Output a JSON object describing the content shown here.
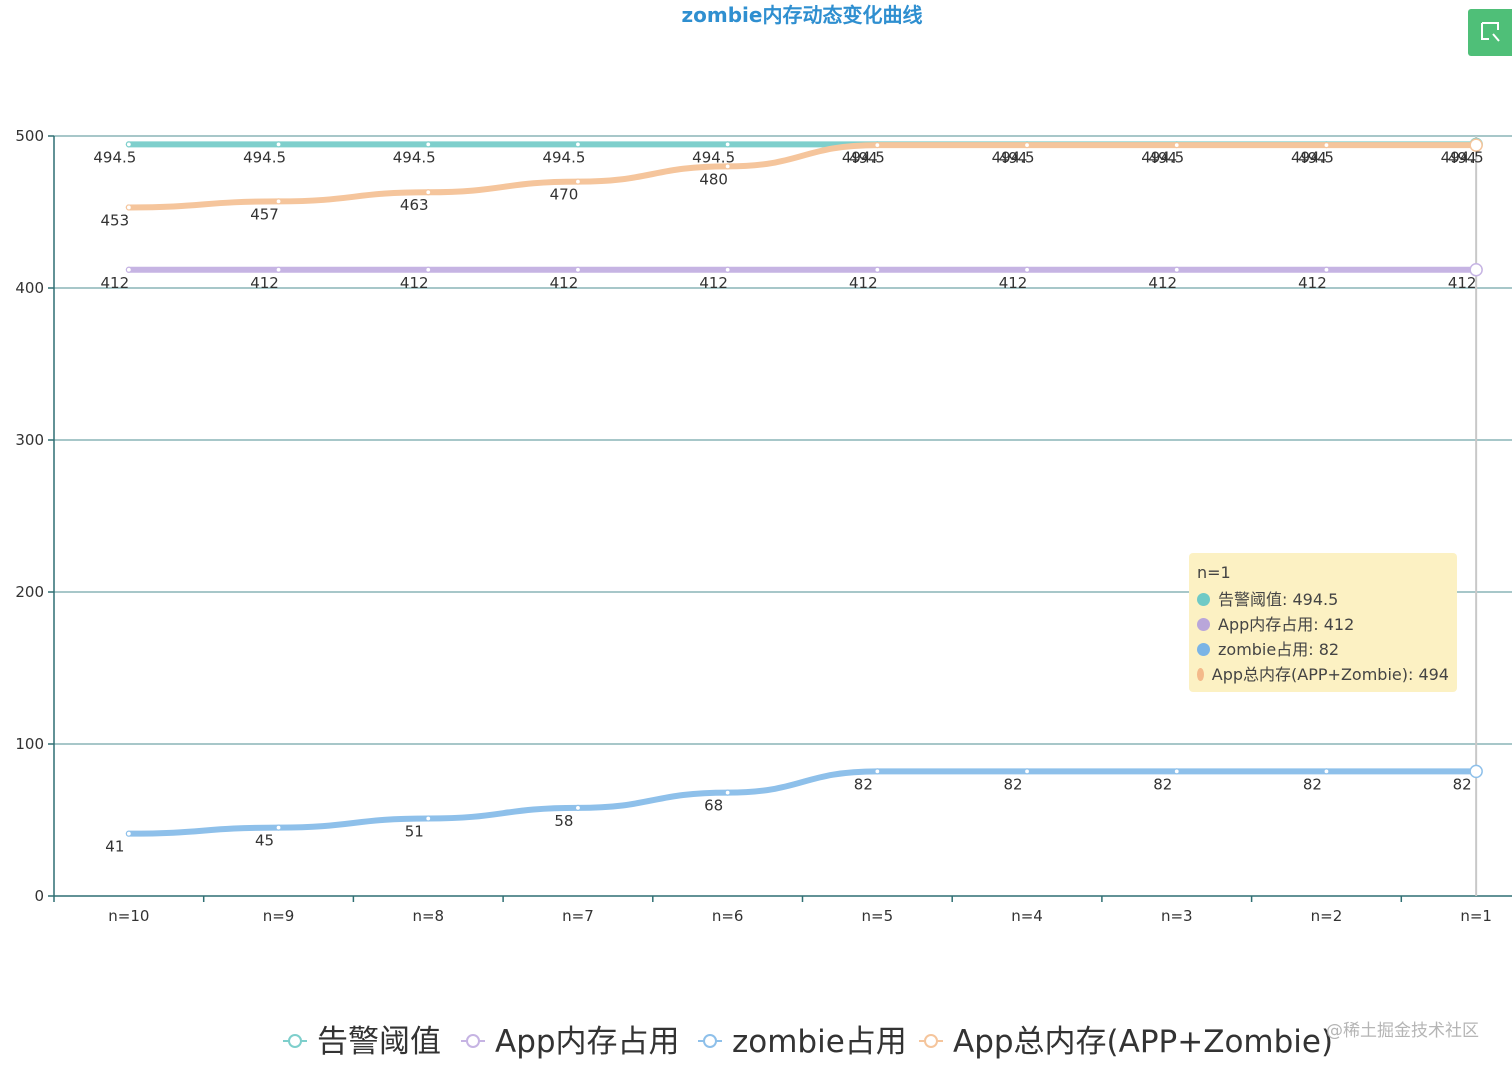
{
  "chart_data": {
    "type": "line",
    "title": "zombie内存动态变化曲线",
    "categories": [
      "n=10",
      "n=9",
      "n=8",
      "n=7",
      "n=6",
      "n=5",
      "n=4",
      "n=3",
      "n=2",
      "n=1"
    ],
    "ylim": [
      0,
      500
    ],
    "yticks": [
      "0",
      "100",
      "200",
      "300",
      "400",
      "500"
    ],
    "grid": true,
    "legend_position": "bottom-center",
    "series": [
      {
        "name": "告警阈值",
        "color": "#7ecfcc",
        "values": [
          494.5,
          494.5,
          494.5,
          494.5,
          494.5,
          494.5,
          494.5,
          494.5,
          494.5,
          494.5
        ],
        "labels": [
          "494.5",
          "494.5",
          "494.5",
          "494.5",
          "494.5",
          "494.5",
          "494.5",
          "494.5",
          "494.5",
          "494.5"
        ]
      },
      {
        "name": "App内存占用",
        "color": "#c6b4e3",
        "values": [
          412,
          412,
          412,
          412,
          412,
          412,
          412,
          412,
          412,
          412
        ],
        "labels": [
          "412",
          "412",
          "412",
          "412",
          "412",
          "412",
          "412",
          "412",
          "412",
          "412"
        ]
      },
      {
        "name": "zombie占用",
        "color": "#8ec0ea",
        "values": [
          41,
          45,
          51,
          58,
          68,
          82,
          82,
          82,
          82,
          82
        ],
        "labels": [
          "41",
          "45",
          "51",
          "58",
          "68",
          "82",
          "82",
          "82",
          "82",
          "82"
        ]
      },
      {
        "name": "App总内存(APP+Zombie)",
        "color": "#f5c59c",
        "values": [
          453,
          457,
          463,
          470,
          480,
          494,
          494,
          494,
          494,
          494
        ],
        "labels": [
          "453",
          "457",
          "463",
          "470",
          "480",
          "494",
          "494",
          "494",
          "494",
          "494"
        ]
      }
    ]
  },
  "tooltip": {
    "title": "n=1",
    "rows": [
      {
        "text": "告警阈值: 494.5",
        "color": "#6fcac6"
      },
      {
        "text": "App内存占用: 412",
        "color": "#b9a6da"
      },
      {
        "text": "zombie占用: 82",
        "color": "#7ab4e6"
      },
      {
        "text": "App总内存(APP+Zombie): 494",
        "color": "#f4b98a"
      }
    ]
  },
  "toolbox": {
    "icon": "data-zoom-icon"
  },
  "watermark": "@稀土掘金技术社区"
}
